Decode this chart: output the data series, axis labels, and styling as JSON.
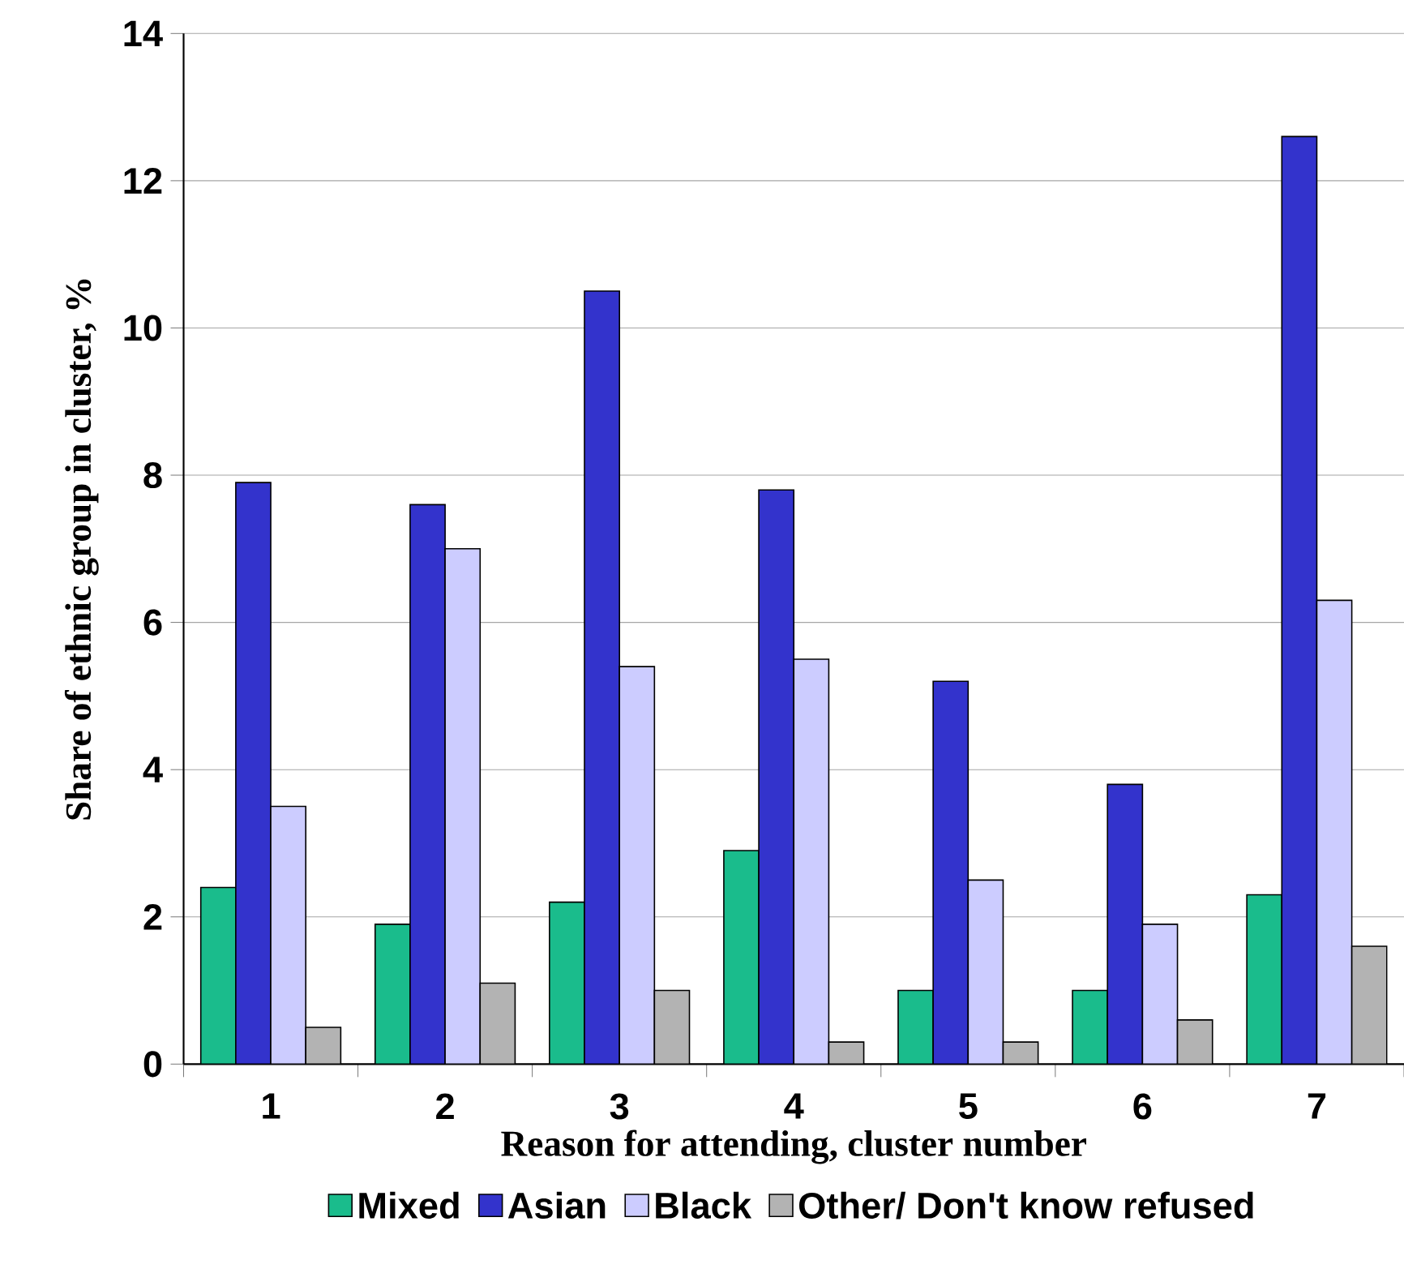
{
  "chart_data": {
    "type": "bar",
    "xlabel": "Reason for attending, cluster number",
    "ylabel": "Share of ethnic group in cluster, %",
    "categories": [
      "1",
      "2",
      "3",
      "4",
      "5",
      "6",
      "7"
    ],
    "series": [
      {
        "name": "Mixed",
        "color": "#1abc8c",
        "values": [
          2.4,
          1.9,
          2.2,
          2.9,
          1.0,
          1.0,
          2.3
        ]
      },
      {
        "name": "Asian",
        "color": "#3333cc",
        "values": [
          7.9,
          7.6,
          10.5,
          7.8,
          5.2,
          3.8,
          12.6
        ]
      },
      {
        "name": "Black",
        "color": "#ccccff",
        "values": [
          3.5,
          7.0,
          5.4,
          5.5,
          2.5,
          1.9,
          6.3
        ]
      },
      {
        "name": "Other/ Don't know refused",
        "color": "#b3b3b3",
        "values": [
          0.5,
          1.1,
          1.0,
          0.3,
          0.3,
          0.6,
          1.6
        ]
      }
    ],
    "ylim": [
      0,
      14
    ],
    "yticks": [
      0,
      2,
      4,
      6,
      8,
      10,
      12,
      14
    ],
    "grid": "y",
    "legend": "bottom"
  }
}
